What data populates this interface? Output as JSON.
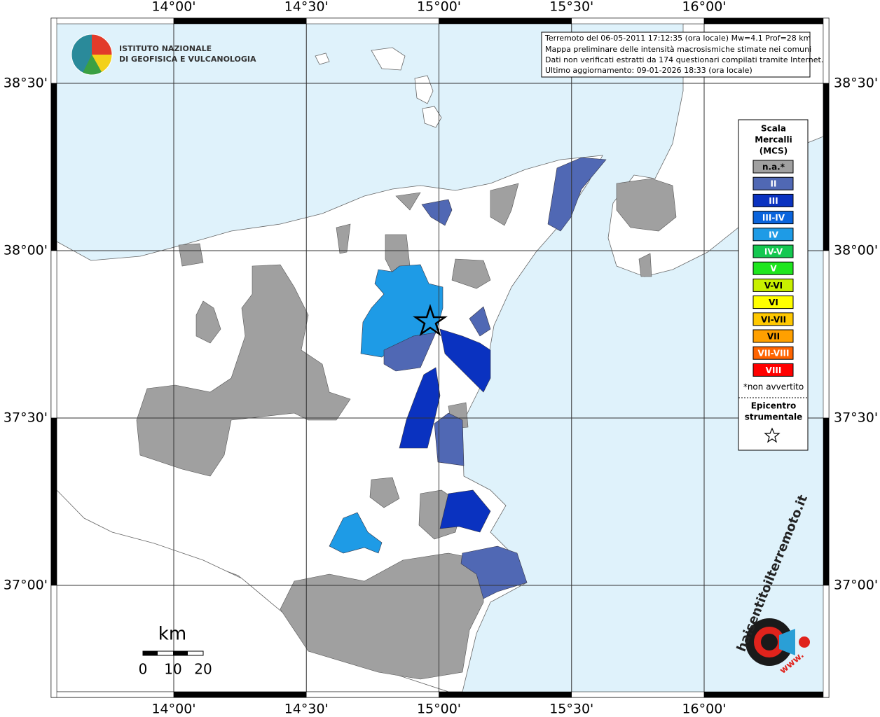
{
  "header": {
    "institute": [
      "ISTITUTO NAZIONALE",
      "DI GEOFISICA E VULCANOLOGIA"
    ]
  },
  "info": [
    "Terremoto del 06-05-2011 17:12:35 (ora locale) Mw=4.1 Prof=28 km",
    "Mappa preliminare delle intensità macrosismiche stimate nei comuni",
    "Dati non verificati estratti da 174 questionari compilati tramite Internet.",
    "Ultimo aggiornamento: 09-01-2026 18:33 (ora locale)"
  ],
  "grid": {
    "lon": [
      {
        "value": 14,
        "label": "14°00'"
      },
      {
        "value": 14.5,
        "label": "14°30'"
      },
      {
        "value": 15,
        "label": "15°00'"
      },
      {
        "value": 15.5,
        "label": "15°30'"
      },
      {
        "value": 16,
        "label": "16°00'"
      }
    ],
    "lat": [
      {
        "value": 38.5,
        "label": "38°30'"
      },
      {
        "value": 38,
        "label": "38°00'"
      },
      {
        "value": 37.5,
        "label": "37°30'"
      },
      {
        "value": 37,
        "label": "37°00'"
      }
    ]
  },
  "legend": {
    "title": [
      "Scala",
      "Mercalli",
      "(MCS)"
    ],
    "items": [
      {
        "label": "n.a.*",
        "color": "#a0a0a0"
      },
      {
        "label": "II",
        "color": "#5068b4"
      },
      {
        "label": "III",
        "color": "#0a32c0"
      },
      {
        "label": "III-IV",
        "color": "#0a64dc"
      },
      {
        "label": "IV",
        "color": "#1e9be6"
      },
      {
        "label": "IV-V",
        "color": "#14c850"
      },
      {
        "label": "V",
        "color": "#1ee61e"
      },
      {
        "label": "V-VI",
        "color": "#c8f000"
      },
      {
        "label": "VI",
        "color": "#ffff00"
      },
      {
        "label": "VI-VII",
        "color": "#ffc800"
      },
      {
        "label": "VII",
        "color": "#ffa000"
      },
      {
        "label": "VII-VIII",
        "color": "#ff6400"
      },
      {
        "label": "VIII",
        "color": "#ff0000"
      }
    ],
    "note": "*non avvertito",
    "epicenter": [
      "Epicentro",
      "strumentale"
    ]
  },
  "scale_bar": {
    "unit": "km",
    "ticks": [
      "0",
      "10",
      "20"
    ]
  },
  "badge": {
    "site": "haisentitoilterremoto.it",
    "prefix": "www."
  }
}
